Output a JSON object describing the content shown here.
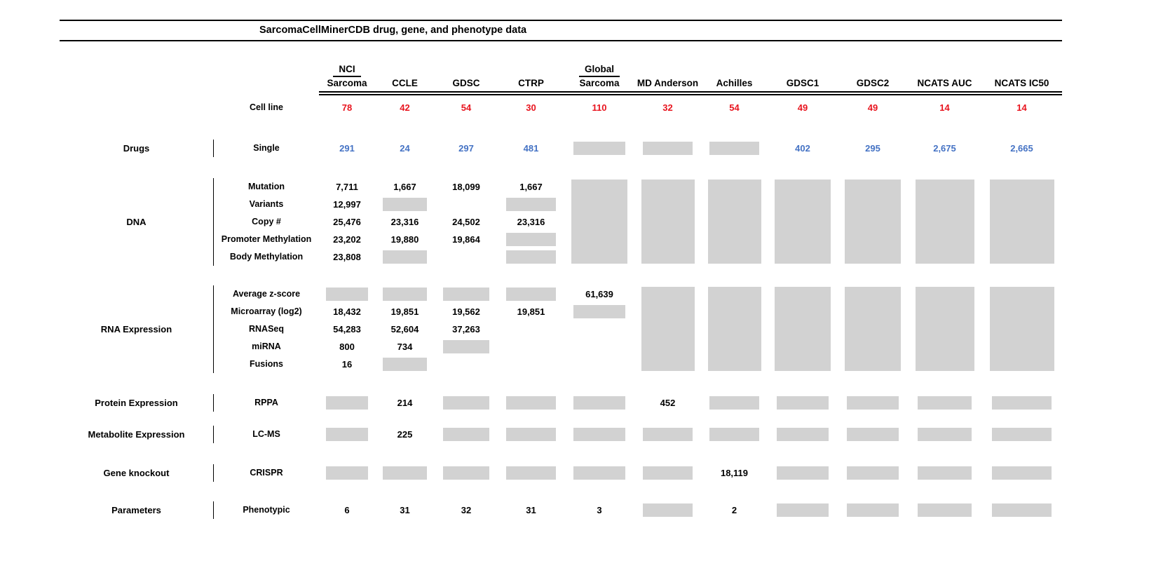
{
  "title": "SarcomaCellMinerCDB drug, gene, and phenotype data",
  "colors": {
    "red": "#e8141e",
    "blue": "#4472c4",
    "gray_box": "#d2d2d2"
  },
  "columns": [
    {
      "top": "NCI",
      "label": "Sarcoma"
    },
    {
      "label": "CCLE"
    },
    {
      "label": "GDSC"
    },
    {
      "label": "CTRP"
    },
    {
      "top": "Global",
      "label": "Sarcoma"
    },
    {
      "label": "MD Anderson"
    },
    {
      "label": "Achilles"
    },
    {
      "label": "GDSC1"
    },
    {
      "label": "GDSC2"
    },
    {
      "label": "NCATS AUC"
    },
    {
      "label": "NCATS IC50"
    }
  ],
  "cell_line": {
    "label": "Cell line",
    "values": [
      "78",
      "42",
      "54",
      "30",
      "110",
      "32",
      "54",
      "49",
      "49",
      "14",
      "14"
    ]
  },
  "sections": [
    {
      "category": "Drugs",
      "color": "blue",
      "rows": [
        {
          "label": "Single",
          "cells": [
            "291",
            "24",
            "297",
            "481",
            "gray",
            "gray",
            "gray",
            "402",
            "295",
            "2,675",
            "2,665"
          ]
        }
      ]
    },
    {
      "category": "DNA",
      "tall_gray": [
        4,
        5,
        6,
        7,
        8,
        9,
        10
      ],
      "rows": [
        {
          "label": "Mutation",
          "cells": [
            "7,711",
            "1,667",
            "18,099",
            "1,667"
          ]
        },
        {
          "label": "Variants",
          "cells": [
            "12,997",
            "gray",
            "",
            "gray"
          ]
        },
        {
          "label": "Copy #",
          "cells": [
            "25,476",
            "23,316",
            "24,502",
            "23,316"
          ]
        },
        {
          "label": "Promoter Methylation",
          "cells": [
            "23,202",
            "19,880",
            "19,864",
            "gray"
          ]
        },
        {
          "label": "Body Methylation",
          "cells": [
            "23,808",
            "gray",
            "",
            "gray"
          ]
        }
      ]
    },
    {
      "category": "RNA Expression",
      "tall_gray": [
        5,
        6,
        7,
        8,
        9,
        10
      ],
      "rows": [
        {
          "label": "Average z-score",
          "cells": [
            "gray",
            "gray",
            "gray",
            "gray",
            "61,639"
          ]
        },
        {
          "label": "Microarray (log2)",
          "cells": [
            "18,432",
            "19,851",
            "19,562",
            "19,851",
            "gray"
          ]
        },
        {
          "label": "RNASeq",
          "cells": [
            "54,283",
            "52,604",
            "37,263",
            "",
            ""
          ]
        },
        {
          "label": "miRNA",
          "cells": [
            "800",
            "734",
            "gray",
            "",
            ""
          ]
        },
        {
          "label": "Fusions",
          "cells": [
            "16",
            "gray",
            "",
            "",
            ""
          ]
        }
      ]
    },
    {
      "category": "Protein Expression",
      "rows": [
        {
          "label": "RPPA",
          "cells": [
            "gray",
            "214",
            "gray",
            "gray",
            "gray",
            "452",
            "gray",
            "gray",
            "gray",
            "gray",
            "gray"
          ]
        }
      ]
    },
    {
      "category": "Metabolite Expression",
      "rows": [
        {
          "label": "LC-MS",
          "cells": [
            "gray",
            "225",
            "gray",
            "gray",
            "gray",
            "gray",
            "gray",
            "gray",
            "gray",
            "gray",
            "gray"
          ]
        }
      ]
    },
    {
      "category": "Gene knockout",
      "rows": [
        {
          "label": "CRISPR",
          "cells": [
            "gray",
            "gray",
            "gray",
            "gray",
            "gray",
            "gray",
            "18,119",
            "gray",
            "gray",
            "gray",
            "gray"
          ]
        }
      ]
    },
    {
      "category": "Parameters",
      "rows": [
        {
          "label": "Phenotypic",
          "cells": [
            "6",
            "31",
            "32",
            "31",
            "3",
            "gray",
            "2",
            "gray",
            "gray",
            "gray",
            "gray"
          ]
        }
      ]
    }
  ]
}
